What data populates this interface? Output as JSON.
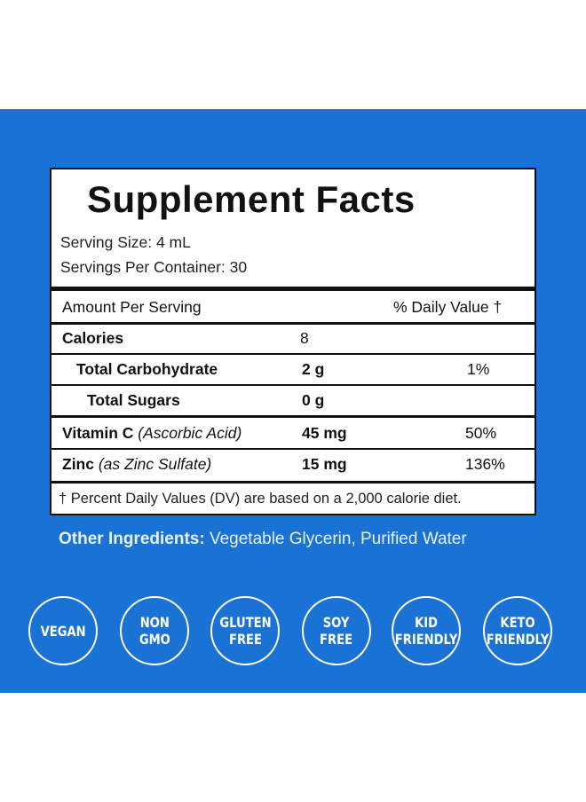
{
  "facts": {
    "title": "Supplement Facts",
    "serving_size": "Serving Size: 4 mL",
    "servings_per_container": "Servings Per Container: 30",
    "header": {
      "left": "Amount Per Serving",
      "right": "% Daily Value †"
    },
    "rows": [
      {
        "name": "Calories",
        "amount": "8",
        "dv": ""
      },
      {
        "name": "Total Carbohydrate",
        "amount": "2 g",
        "dv": "1%"
      },
      {
        "name": "Total Sugars",
        "amount": "0 g",
        "dv": ""
      },
      {
        "name": "Vitamin C",
        "detail": "(Ascorbic Acid)",
        "amount": "45 mg",
        "dv": "50%"
      },
      {
        "name": "Zinc",
        "detail": "(as Zinc Sulfate)",
        "amount": "15 mg",
        "dv": "136%"
      }
    ],
    "footnote": "† Percent Daily Values (DV) are based on a 2,000 calorie diet."
  },
  "other_ingredients": {
    "label": "Other Ingredients:",
    "value": "Vegetable Glycerin, Purified Water"
  },
  "badges": [
    "VEGAN",
    "NON\nGMO",
    "GLUTEN\nFREE",
    "SOY\nFREE",
    "KID\nFRIENDLY",
    "KETO\nFRIENDLY"
  ],
  "colors": {
    "background_blue": "#1a73d4",
    "panel_white": "#ffffff",
    "text_dark": "#111111"
  }
}
